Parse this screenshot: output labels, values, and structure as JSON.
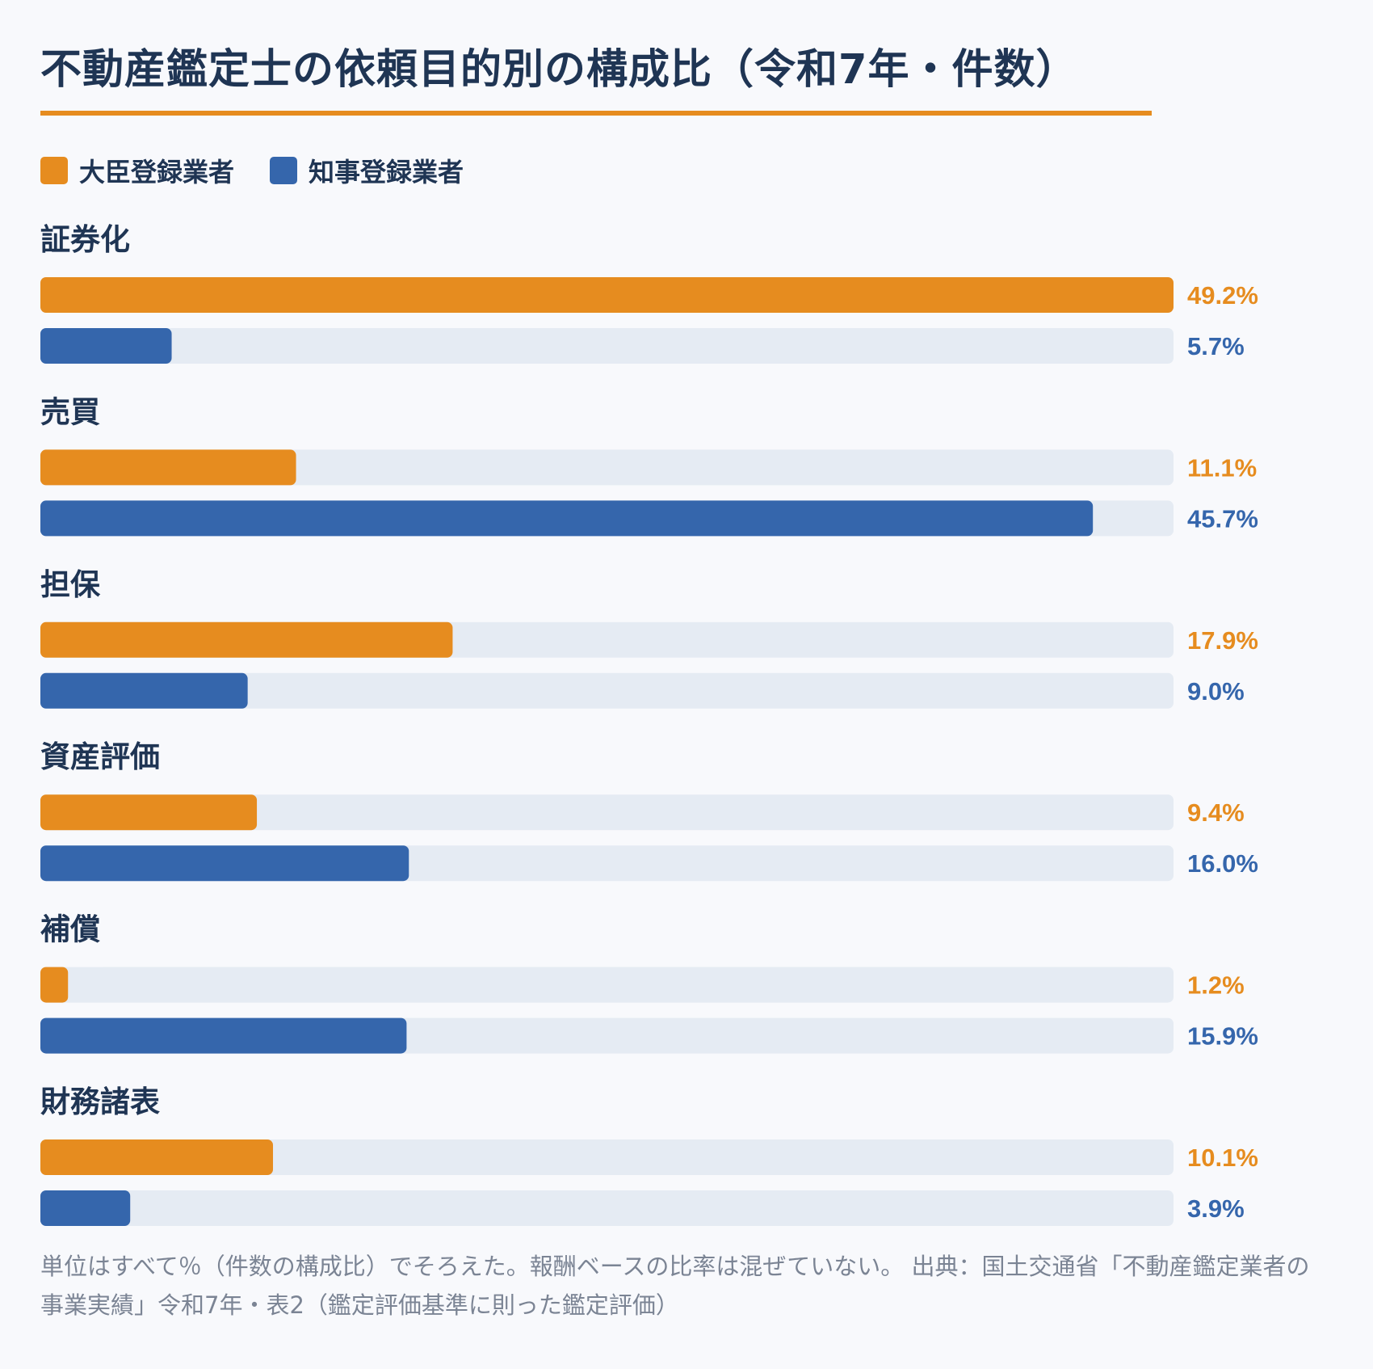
{
  "title": "不動産鑑定士の依頼目的別の構成比（令和7年・件数）",
  "note": "単位はすべて％（件数の構成比）でそろえた。報酬ベースの比率は混ぜていない。 出典：国土交通省「不動産鑑定業者の事業実績」令和7年・表2（鑑定評価基準に則った鑑定評価）",
  "colors": {
    "series1": "#e68c1f",
    "series2": "#3566ac",
    "track": "#e5ebf3",
    "text": "#1f3554"
  },
  "chart_data": {
    "type": "bar",
    "orientation": "horizontal",
    "categories": [
      "証券化",
      "売買",
      "担保",
      "資産評価",
      "補償",
      "財務諸表"
    ],
    "series": [
      {
        "name": "大臣登録業者",
        "color": "#e68c1f",
        "values": [
          49.2,
          11.1,
          17.9,
          9.4,
          1.2,
          10.1
        ],
        "labels": [
          "49.2%",
          "11.1%",
          "17.9%",
          "9.4%",
          "1.2%",
          "10.1%"
        ]
      },
      {
        "name": "知事登録業者",
        "color": "#3566ac",
        "values": [
          5.7,
          45.7,
          9.0,
          16.0,
          15.9,
          3.9
        ],
        "labels": [
          "5.7%",
          "45.7%",
          "9.0%",
          "16.0%",
          "15.9%",
          "3.9%"
        ]
      }
    ],
    "xlim": [
      0,
      49.2
    ],
    "unit": "%",
    "legend_position": "top-left",
    "grid": false
  }
}
